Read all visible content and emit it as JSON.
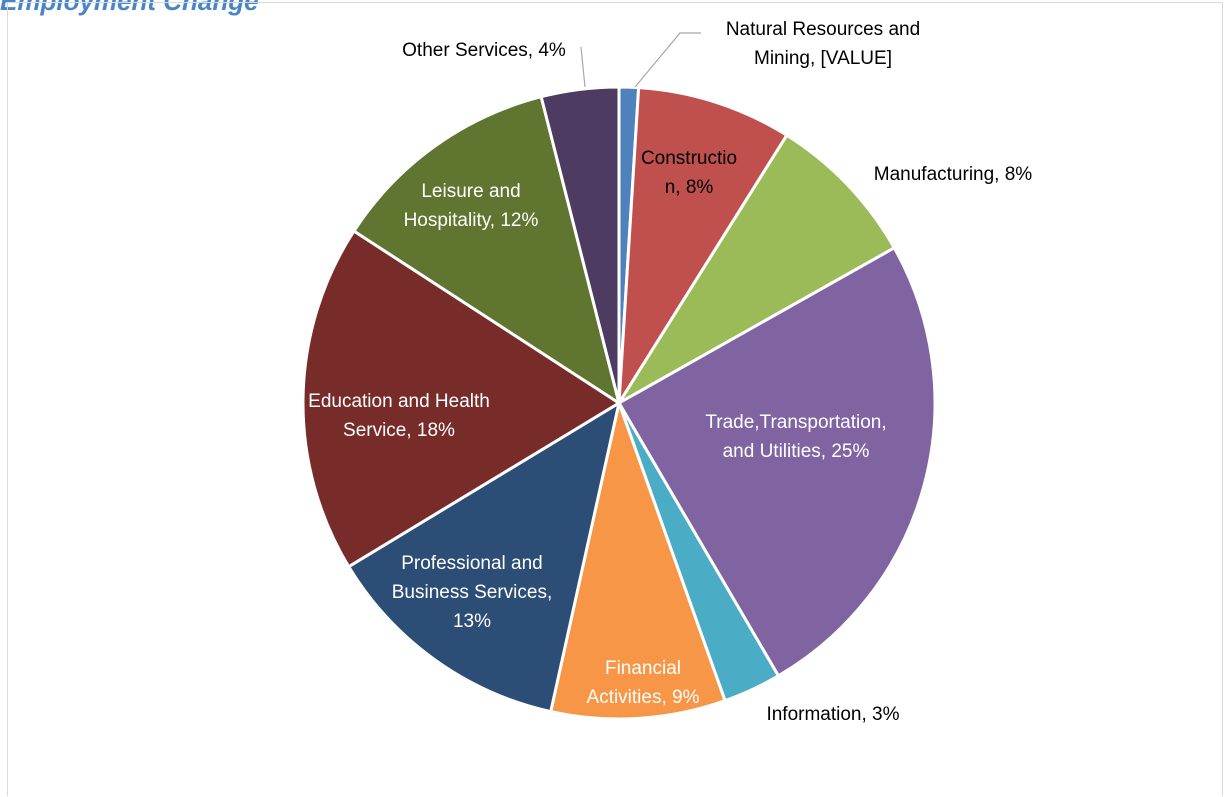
{
  "chart_data": {
    "type": "pie",
    "title": "Employment Change",
    "slices": [
      {
        "name": "Natural Resources and Mining",
        "value": 1,
        "label": [
          "Natural Resources and",
          "Mining, [VALUE]"
        ],
        "color": "#4f81bd",
        "text_color": "#000000"
      },
      {
        "name": "Construction",
        "value": 8,
        "label": [
          "Constructio",
          "n, 8%"
        ],
        "color": "#c0504d",
        "text_color": "#000000"
      },
      {
        "name": "Manufacturing",
        "value": 8,
        "label": [
          "Manufacturing, 8%"
        ],
        "color": "#9bbb59",
        "text_color": "#000000"
      },
      {
        "name": "Trade,Transportation, and Utilities",
        "value": 25,
        "label": [
          "Trade,Transportation,",
          "and Utilities, 25%"
        ],
        "color": "#8064a2",
        "text_color": "#ffffff"
      },
      {
        "name": "Information",
        "value": 3,
        "label": [
          "Information, 3%"
        ],
        "color": "#4bacc6",
        "text_color": "#000000"
      },
      {
        "name": "Financial Activities",
        "value": 9,
        "label": [
          "Financial",
          "Activities, 9%"
        ],
        "color": "#f79646",
        "text_color": "#ffffff"
      },
      {
        "name": "Professional and Business Services",
        "value": 13,
        "label": [
          "Professional and",
          "Business Services,",
          "13%"
        ],
        "color": "#2c4d75",
        "text_color": "#ffffff"
      },
      {
        "name": "Education and Health Service",
        "value": 18,
        "label": [
          "Education and Health",
          "Service, 18%"
        ],
        "color": "#772c2a",
        "text_color": "#ffffff"
      },
      {
        "name": "Leisure and Hospitality",
        "value": 12,
        "label": [
          "Leisure and",
          "Hospitality, 12%"
        ],
        "color": "#5f7530",
        "text_color": "#ffffff"
      },
      {
        "name": "Other Services",
        "value": 4,
        "label": [
          "Other Services, 4%"
        ],
        "color": "#4d3b62",
        "text_color": "#000000"
      }
    ],
    "legend": "none"
  }
}
